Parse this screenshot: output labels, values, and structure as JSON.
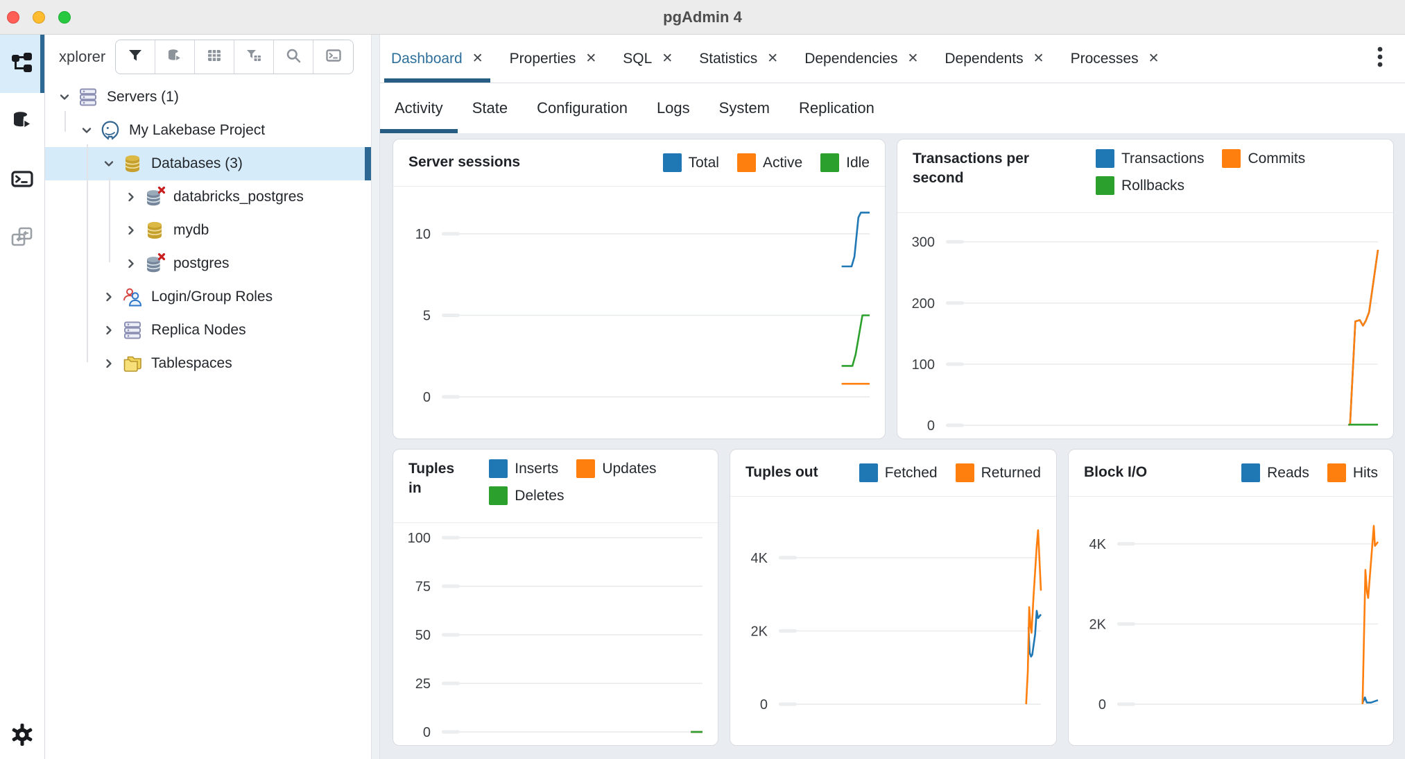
{
  "window": {
    "title": "pgAdmin 4"
  },
  "activity_bar": {
    "items": [
      {
        "icon": "object-explorer-icon",
        "active": true
      },
      {
        "icon": "query-tool-database-icon",
        "active": false
      },
      {
        "icon": "psql-terminal-icon",
        "active": false
      },
      {
        "icon": "schema-diff-icon",
        "active": false
      }
    ],
    "bottom_icon": "settings-gear-icon"
  },
  "explorer": {
    "label": "xplorer",
    "toolbar": [
      "filter-icon",
      "database-play-icon",
      "table-grid-icon",
      "filter-table-icon",
      "search-icon",
      "terminal-icon"
    ],
    "tree": {
      "items": [
        {
          "label": "Servers (1)",
          "level": 0,
          "state": "expanded",
          "icon": "server-stack",
          "selected": false
        },
        {
          "label": "My Lakebase Project",
          "level": 1,
          "state": "expanded",
          "icon": "postgres-server",
          "selected": false
        },
        {
          "label": "Databases (3)",
          "level": 2,
          "state": "expanded",
          "icon": "database",
          "selected": true
        },
        {
          "label": "databricks_postgres",
          "level": 3,
          "state": "collapsed",
          "icon": "database-disconnected",
          "selected": false
        },
        {
          "label": "mydb",
          "level": 3,
          "state": "collapsed",
          "icon": "database",
          "selected": false
        },
        {
          "label": "postgres",
          "level": 3,
          "state": "collapsed",
          "icon": "database-disconnected",
          "selected": false
        },
        {
          "label": "Login/Group Roles",
          "level": 2,
          "state": "collapsed",
          "icon": "login-group-roles",
          "selected": false
        },
        {
          "label": "Replica Nodes",
          "level": 2,
          "state": "collapsed",
          "icon": "server-stack",
          "selected": false
        },
        {
          "label": "Tablespaces",
          "level": 2,
          "state": "collapsed",
          "icon": "tablespaces-folder",
          "selected": false
        }
      ]
    }
  },
  "tabs": [
    {
      "label": "Dashboard",
      "active": true,
      "closable": true
    },
    {
      "label": "Properties",
      "active": false,
      "closable": true
    },
    {
      "label": "SQL",
      "active": false,
      "closable": true
    },
    {
      "label": "Statistics",
      "active": false,
      "closable": true
    },
    {
      "label": "Dependencies",
      "active": false,
      "closable": true
    },
    {
      "label": "Dependents",
      "active": false,
      "closable": true
    },
    {
      "label": "Processes",
      "active": false,
      "closable": true
    }
  ],
  "tabs_overflow_icon": "kebab-menu-icon",
  "subtabs": [
    {
      "label": "Activity",
      "active": true
    },
    {
      "label": "State",
      "active": false
    },
    {
      "label": "Configuration",
      "active": false
    },
    {
      "label": "Logs",
      "active": false
    },
    {
      "label": "System",
      "active": false
    },
    {
      "label": "Replication",
      "active": false
    }
  ],
  "colors": {
    "series_blue": "#1f77b4",
    "series_orange": "#ff7f0e",
    "series_green": "#2ca02c",
    "active_tab_text": "#2d6f9a",
    "active_underline": "#275d82",
    "tree_selection": "#d5ebfa"
  },
  "chart_data": [
    {
      "type": "line",
      "title": "Server sessions",
      "ylim": [
        0,
        12
      ],
      "yticks": [
        0,
        5,
        10
      ],
      "ytick_labels": [
        "0",
        "5",
        "10"
      ],
      "grid": true,
      "legend_position": "header-right",
      "series": [
        {
          "name": "Total",
          "color": "#1f77b4",
          "points": [
            [
              0.93,
              8
            ],
            [
              0.955,
              8
            ],
            [
              0.962,
              8.6
            ],
            [
              0.972,
              11.0
            ],
            [
              0.978,
              11.3
            ],
            [
              1,
              11.3
            ]
          ]
        },
        {
          "name": "Active",
          "color": "#ff7f0e",
          "points": [
            [
              0.93,
              0.8
            ],
            [
              1,
              0.8
            ]
          ]
        },
        {
          "name": "Idle",
          "color": "#2ca02c",
          "points": [
            [
              0.93,
              1.9
            ],
            [
              0.957,
              1.9
            ],
            [
              0.965,
              2.6
            ],
            [
              0.982,
              5.0
            ],
            [
              1,
              5.0
            ]
          ]
        }
      ]
    },
    {
      "type": "line",
      "title": "Transactions per second",
      "ylim": [
        0,
        320
      ],
      "yticks": [
        0,
        100,
        200,
        300
      ],
      "ytick_labels": [
        "0",
        "100",
        "200",
        "300"
      ],
      "grid": true,
      "legend_position": "header-right",
      "series": [
        {
          "name": "Transactions",
          "color": "#1f77b4",
          "points": [
            [
              0.927,
              0
            ],
            [
              0.931,
              2
            ],
            [
              0.944,
              170
            ],
            [
              0.955,
              172
            ],
            [
              0.963,
              163
            ],
            [
              0.97,
              171
            ],
            [
              0.978,
              185
            ],
            [
              1,
              287
            ]
          ]
        },
        {
          "name": "Commits",
          "color": "#ff7f0e",
          "points": [
            [
              0.927,
              0
            ],
            [
              0.931,
              2
            ],
            [
              0.944,
              170
            ],
            [
              0.955,
              172
            ],
            [
              0.963,
              163
            ],
            [
              0.97,
              171
            ],
            [
              0.978,
              185
            ],
            [
              1,
              287
            ]
          ]
        },
        {
          "name": "Rollbacks",
          "color": "#2ca02c",
          "points": [
            [
              0.927,
              1
            ],
            [
              1,
              1
            ]
          ]
        }
      ]
    },
    {
      "type": "line",
      "title": "Tuples in",
      "ylim": [
        0,
        105
      ],
      "yticks": [
        0,
        25,
        50,
        75,
        100
      ],
      "ytick_labels": [
        "0",
        "25",
        "50",
        "75",
        "100"
      ],
      "grid": true,
      "legend_position": "header-right",
      "series": [
        {
          "name": "Inserts",
          "color": "#1f77b4",
          "points": [
            [
              0.95,
              0
            ],
            [
              1,
              0
            ]
          ]
        },
        {
          "name": "Updates",
          "color": "#ff7f0e",
          "points": [
            [
              0.95,
              0
            ],
            [
              1,
              0
            ]
          ]
        },
        {
          "name": "Deletes",
          "color": "#2ca02c",
          "points": [
            [
              0.95,
              0
            ],
            [
              1,
              0
            ]
          ]
        }
      ]
    },
    {
      "type": "line",
      "title": "Tuples out",
      "ylim": [
        0,
        5000
      ],
      "yticks": [
        0,
        2000,
        4000
      ],
      "ytick_labels": [
        "0",
        "2K",
        "4K"
      ],
      "grid": true,
      "legend_position": "header-right",
      "series": [
        {
          "name": "Fetched",
          "color": "#1f77b4",
          "points": [
            [
              0.947,
              2100
            ],
            [
              0.952,
              1400
            ],
            [
              0.958,
              1300
            ],
            [
              0.963,
              1350
            ],
            [
              0.975,
              1900
            ],
            [
              0.982,
              2550
            ],
            [
              0.988,
              2350
            ],
            [
              1,
              2450
            ]
          ]
        },
        {
          "name": "Returned",
          "color": "#ff7f0e",
          "points": [
            [
              0.937,
              0
            ],
            [
              0.944,
              900
            ],
            [
              0.95,
              2650
            ],
            [
              0.956,
              2100
            ],
            [
              0.96,
              1950
            ],
            [
              0.968,
              2900
            ],
            [
              0.982,
              4300
            ],
            [
              0.988,
              4750
            ],
            [
              1,
              3100
            ]
          ]
        }
      ]
    },
    {
      "type": "line",
      "title": "Block I/O",
      "ylim": [
        0,
        4500
      ],
      "yticks": [
        0,
        2000,
        4000
      ],
      "ytick_labels": [
        "0",
        "2K",
        "4K"
      ],
      "grid": true,
      "legend_position": "header-right",
      "series": [
        {
          "name": "Reads",
          "color": "#1f77b4",
          "points": [
            [
              0.934,
              30
            ],
            [
              0.944,
              170
            ],
            [
              0.952,
              40
            ],
            [
              0.97,
              40
            ],
            [
              1,
              100
            ]
          ]
        },
        {
          "name": "Hits",
          "color": "#ff7f0e",
          "points": [
            [
              0.934,
              0
            ],
            [
              0.946,
              3350
            ],
            [
              0.953,
              2800
            ],
            [
              0.958,
              2650
            ],
            [
              0.982,
              4450
            ],
            [
              0.987,
              3950
            ],
            [
              1,
              4050
            ]
          ]
        }
      ]
    }
  ]
}
